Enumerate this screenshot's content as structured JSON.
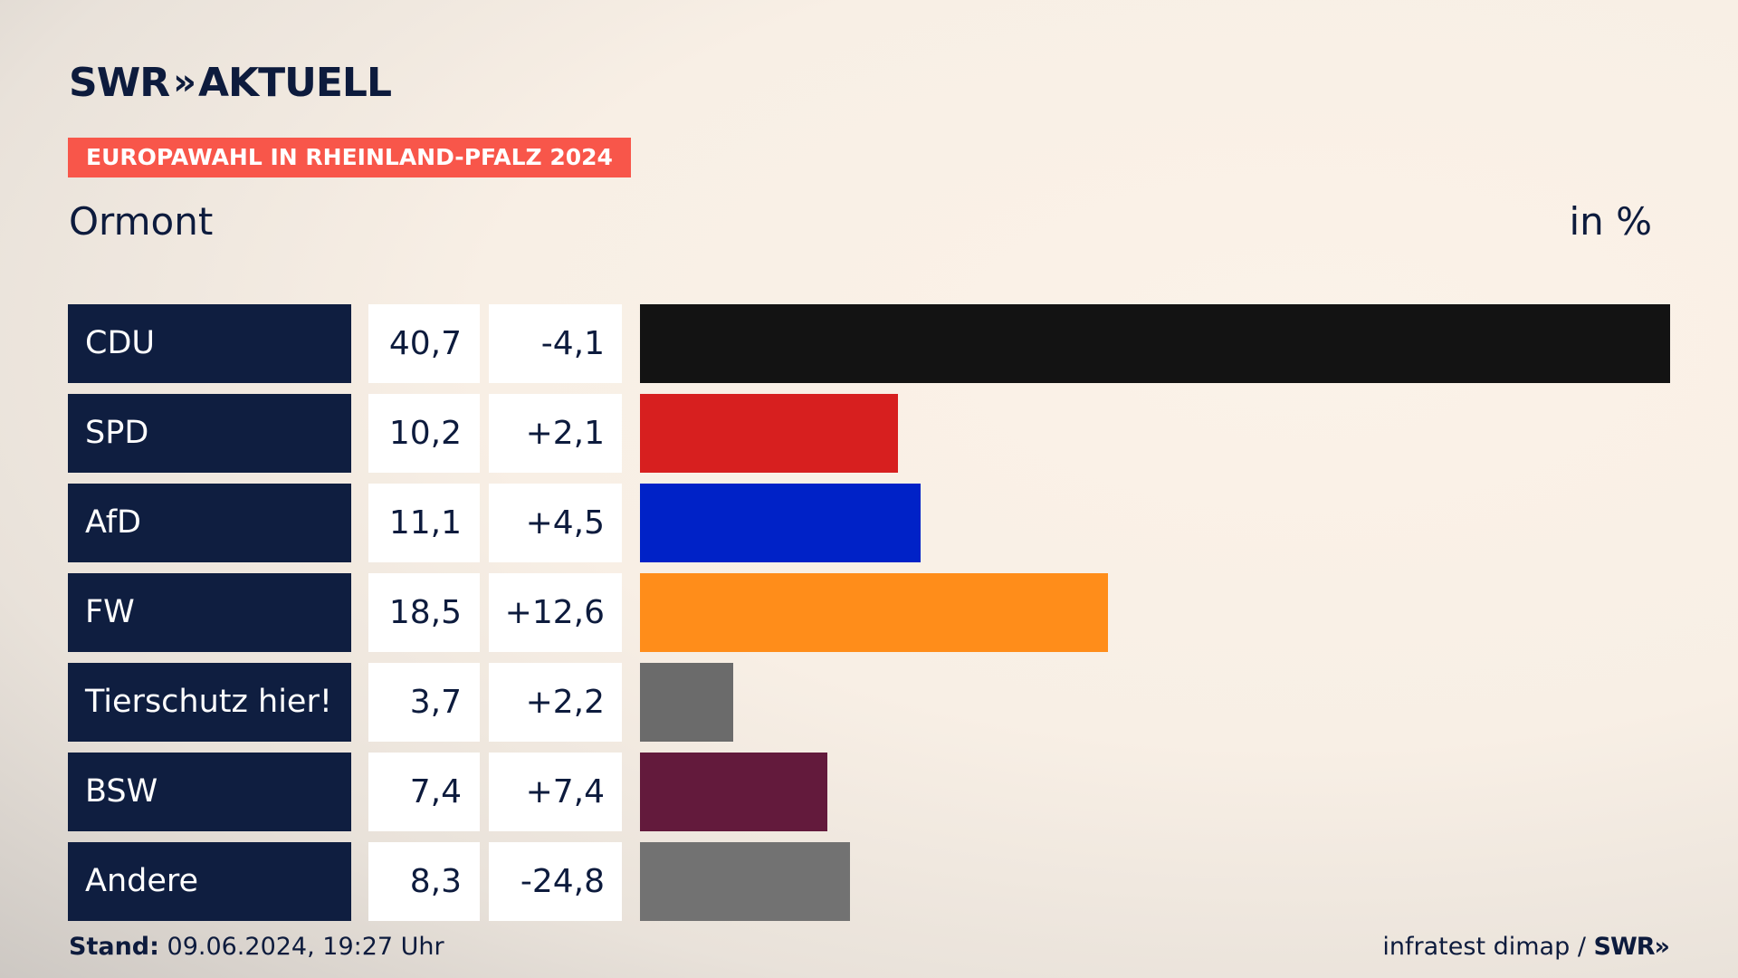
{
  "brand": {
    "logo_left": "SWR",
    "logo_chevron": "»",
    "logo_right": "AKTUELL"
  },
  "badge": "EUROPAWAHL IN RHEINLAND-PFALZ 2024",
  "region": "Ormont",
  "unit": "in %",
  "footer": {
    "stand_label": "Stand:",
    "stand_value": "09.06.2024, 19:27 Uhr",
    "source": "infratest dimap /",
    "source_brand": "SWR»"
  },
  "colors": {
    "badge": "#f8564a",
    "party_bg": "#0f1e40"
  },
  "chart_data": {
    "type": "bar",
    "orientation": "horizontal",
    "categories": [
      "CDU",
      "SPD",
      "AfD",
      "FW",
      "Tierschutz hier!",
      "BSW",
      "Andere"
    ],
    "series": [
      {
        "values": [
          40.7,
          10.2,
          11.1,
          18.5,
          3.7,
          7.4,
          8.3
        ],
        "values_label": [
          "40,7",
          "10,2",
          "11,1",
          "18,5",
          "3,7",
          "7,4",
          "8,3"
        ],
        "diff_label": [
          "-4,1",
          "+2,1",
          "+4,5",
          "+12,6",
          "+2,2",
          "+7,4",
          "-24,8"
        ],
        "diff": [
          -4.1,
          2.1,
          4.5,
          12.6,
          2.2,
          7.4,
          -24.8
        ]
      }
    ],
    "bar_colors": [
      "#131313",
      "#d71f1f",
      "#0022c7",
      "#ff8d1a",
      "#6b6b6b",
      "#631a3c",
      "#727272"
    ],
    "xlim": [
      0,
      40.7
    ]
  }
}
